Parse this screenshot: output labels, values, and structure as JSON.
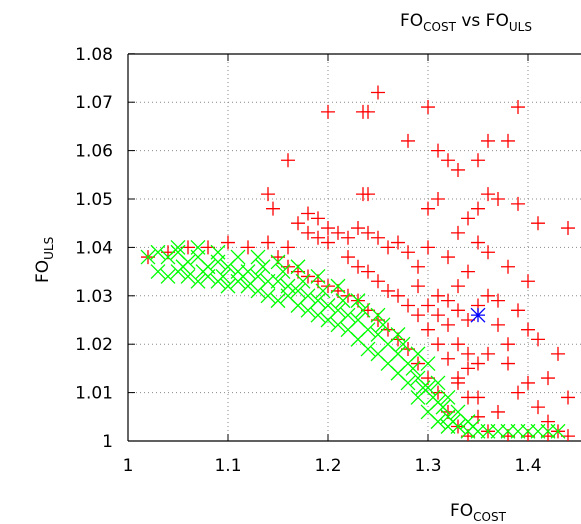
{
  "chart_data": {
    "type": "scatter",
    "title": {
      "base": "FO",
      "sub": "COST",
      "mid": " vs FO",
      "sub2": "ULS"
    },
    "xlabel": {
      "base": "FO",
      "sub": "COST"
    },
    "ylabel": {
      "base": "FO",
      "sub": "ULS"
    },
    "xlim": [
      1.0,
      1.44
    ],
    "ylim": [
      1.0,
      1.08
    ],
    "xticks": [
      1,
      1.1,
      1.2,
      1.3,
      1.4
    ],
    "xtick_labels": [
      "1",
      "1.1",
      "1.2",
      "1.3",
      "1.4"
    ],
    "yticks": [
      1,
      1.01,
      1.02,
      1.03,
      1.04,
      1.05,
      1.06,
      1.07,
      1.08
    ],
    "ytick_labels": [
      "1",
      "1.01",
      "1.02",
      "1.03",
      "1.04",
      "1.05",
      "1.06",
      "1.07",
      "1.08"
    ],
    "grid": true,
    "series": [
      {
        "marker": "plus",
        "color": "#ff0000",
        "points": [
          [
            1.25,
            1.072
          ],
          [
            1.2,
            1.068
          ],
          [
            1.235,
            1.068
          ],
          [
            1.24,
            1.068
          ],
          [
            1.3,
            1.069
          ],
          [
            1.39,
            1.069
          ],
          [
            1.16,
            1.058
          ],
          [
            1.31,
            1.06
          ],
          [
            1.32,
            1.058
          ],
          [
            1.35,
            1.058
          ],
          [
            1.33,
            1.056
          ],
          [
            1.28,
            1.062
          ],
          [
            1.38,
            1.062
          ],
          [
            1.36,
            1.062
          ],
          [
            1.14,
            1.051
          ],
          [
            1.145,
            1.048
          ],
          [
            1.24,
            1.051
          ],
          [
            1.235,
            1.051
          ],
          [
            1.3,
            1.048
          ],
          [
            1.31,
            1.05
          ],
          [
            1.36,
            1.051
          ],
          [
            1.37,
            1.05
          ],
          [
            1.39,
            1.049
          ],
          [
            1.34,
            1.046
          ],
          [
            1.35,
            1.048
          ],
          [
            1.41,
            1.045
          ],
          [
            1.44,
            1.044
          ],
          [
            1.33,
            1.043
          ],
          [
            1.35,
            1.041
          ],
          [
            1.36,
            1.039
          ],
          [
            1.32,
            1.038
          ],
          [
            1.3,
            1.04
          ],
          [
            1.38,
            1.036
          ],
          [
            1.34,
            1.035
          ],
          [
            1.4,
            1.033
          ],
          [
            1.33,
            1.032
          ],
          [
            1.36,
            1.03
          ],
          [
            1.37,
            1.029
          ],
          [
            1.31,
            1.03
          ],
          [
            1.29,
            1.032
          ],
          [
            1.39,
            1.027
          ],
          [
            1.35,
            1.028
          ],
          [
            1.4,
            1.023
          ],
          [
            1.41,
            1.021
          ],
          [
            1.37,
            1.024
          ],
          [
            1.38,
            1.02
          ],
          [
            1.43,
            1.018
          ],
          [
            1.36,
            1.018
          ],
          [
            1.38,
            1.016
          ],
          [
            1.34,
            1.015
          ],
          [
            1.4,
            1.012
          ],
          [
            1.39,
            1.01
          ],
          [
            1.41,
            1.007
          ],
          [
            1.42,
            1.004
          ],
          [
            1.43,
            1.002
          ],
          [
            1.37,
            1.006
          ],
          [
            1.35,
            1.009
          ],
          [
            1.33,
            1.012
          ],
          [
            1.42,
            1.013
          ],
          [
            1.44,
            1.009
          ],
          [
            1.02,
            1.038
          ],
          [
            1.04,
            1.039
          ],
          [
            1.06,
            1.04
          ],
          [
            1.08,
            1.04
          ],
          [
            1.1,
            1.041
          ],
          [
            1.12,
            1.04
          ],
          [
            1.14,
            1.041
          ],
          [
            1.16,
            1.04
          ],
          [
            1.18,
            1.043
          ],
          [
            1.19,
            1.046
          ],
          [
            1.2,
            1.044
          ],
          [
            1.21,
            1.043
          ],
          [
            1.22,
            1.042
          ],
          [
            1.23,
            1.044
          ],
          [
            1.24,
            1.043
          ],
          [
            1.25,
            1.042
          ],
          [
            1.26,
            1.04
          ],
          [
            1.27,
            1.041
          ],
          [
            1.17,
            1.045
          ],
          [
            1.18,
            1.047
          ],
          [
            1.19,
            1.042
          ],
          [
            1.2,
            1.041
          ],
          [
            1.28,
            1.039
          ],
          [
            1.29,
            1.036
          ],
          [
            1.22,
            1.038
          ],
          [
            1.23,
            1.036
          ],
          [
            1.24,
            1.035
          ],
          [
            1.25,
            1.033
          ],
          [
            1.26,
            1.031
          ],
          [
            1.27,
            1.03
          ],
          [
            1.28,
            1.028
          ],
          [
            1.29,
            1.026
          ],
          [
            1.3,
            1.023
          ],
          [
            1.31,
            1.02
          ],
          [
            1.32,
            1.017
          ],
          [
            1.33,
            1.013
          ],
          [
            1.34,
            1.009
          ],
          [
            1.35,
            1.005
          ],
          [
            1.36,
            1.002
          ],
          [
            1.3,
            1.028
          ],
          [
            1.31,
            1.026
          ],
          [
            1.32,
            1.024
          ],
          [
            1.32,
            1.029
          ],
          [
            1.33,
            1.027
          ],
          [
            1.34,
            1.025
          ],
          [
            1.33,
            1.02
          ],
          [
            1.34,
            1.018
          ],
          [
            1.35,
            1.016
          ],
          [
            1.15,
            1.038
          ],
          [
            1.16,
            1.036
          ],
          [
            1.17,
            1.035
          ],
          [
            1.18,
            1.034
          ],
          [
            1.19,
            1.033
          ],
          [
            1.2,
            1.032
          ],
          [
            1.21,
            1.031
          ],
          [
            1.22,
            1.03
          ],
          [
            1.23,
            1.029
          ],
          [
            1.24,
            1.027
          ],
          [
            1.25,
            1.025
          ],
          [
            1.26,
            1.023
          ],
          [
            1.27,
            1.021
          ],
          [
            1.28,
            1.019
          ],
          [
            1.29,
            1.016
          ],
          [
            1.3,
            1.013
          ],
          [
            1.31,
            1.01
          ],
          [
            1.32,
            1.006
          ],
          [
            1.33,
            1.003
          ],
          [
            1.34,
            1.001
          ],
          [
            1.38,
            1.001
          ],
          [
            1.4,
            1.001
          ],
          [
            1.42,
            1.001
          ],
          [
            1.44,
            1.001
          ]
        ]
      },
      {
        "marker": "cross",
        "color": "#00ff00",
        "points": [
          [
            1.02,
            1.038
          ],
          [
            1.03,
            1.039
          ],
          [
            1.04,
            1.038
          ],
          [
            1.05,
            1.039
          ],
          [
            1.06,
            1.037
          ],
          [
            1.07,
            1.038
          ],
          [
            1.08,
            1.036
          ],
          [
            1.09,
            1.037
          ],
          [
            1.1,
            1.036
          ],
          [
            1.11,
            1.035
          ],
          [
            1.12,
            1.035
          ],
          [
            1.13,
            1.034
          ],
          [
            1.14,
            1.033
          ],
          [
            1.15,
            1.033
          ],
          [
            1.16,
            1.032
          ],
          [
            1.17,
            1.031
          ],
          [
            1.18,
            1.03
          ],
          [
            1.19,
            1.029
          ],
          [
            1.2,
            1.028
          ],
          [
            1.21,
            1.027
          ],
          [
            1.22,
            1.026
          ],
          [
            1.23,
            1.025
          ],
          [
            1.24,
            1.023
          ],
          [
            1.25,
            1.022
          ],
          [
            1.26,
            1.02
          ],
          [
            1.27,
            1.018
          ],
          [
            1.28,
            1.016
          ],
          [
            1.29,
            1.013
          ],
          [
            1.3,
            1.011
          ],
          [
            1.31,
            1.008
          ],
          [
            1.32,
            1.005
          ],
          [
            1.33,
            1.003
          ],
          [
            1.34,
            1.002
          ],
          [
            1.35,
            1.002
          ],
          [
            1.36,
            1.002
          ],
          [
            1.37,
            1.002
          ],
          [
            1.38,
            1.002
          ],
          [
            1.39,
            1.002
          ],
          [
            1.4,
            1.002
          ],
          [
            1.41,
            1.002
          ],
          [
            1.42,
            1.002
          ],
          [
            1.43,
            1.002
          ],
          [
            1.03,
            1.035
          ],
          [
            1.04,
            1.034
          ],
          [
            1.05,
            1.035
          ],
          [
            1.06,
            1.034
          ],
          [
            1.07,
            1.033
          ],
          [
            1.08,
            1.034
          ],
          [
            1.09,
            1.033
          ],
          [
            1.1,
            1.032
          ],
          [
            1.11,
            1.033
          ],
          [
            1.12,
            1.032
          ],
          [
            1.13,
            1.031
          ],
          [
            1.14,
            1.03
          ],
          [
            1.15,
            1.029
          ],
          [
            1.16,
            1.03
          ],
          [
            1.17,
            1.028
          ],
          [
            1.18,
            1.027
          ],
          [
            1.19,
            1.026
          ],
          [
            1.2,
            1.025
          ],
          [
            1.21,
            1.024
          ],
          [
            1.22,
            1.023
          ],
          [
            1.23,
            1.021
          ],
          [
            1.24,
            1.019
          ],
          [
            1.25,
            1.018
          ],
          [
            1.26,
            1.016
          ],
          [
            1.27,
            1.014
          ],
          [
            1.28,
            1.012
          ],
          [
            1.29,
            1.009
          ],
          [
            1.3,
            1.006
          ],
          [
            1.31,
            1.004
          ],
          [
            1.32,
            1.003
          ],
          [
            1.05,
            1.04
          ],
          [
            1.07,
            1.04
          ],
          [
            1.09,
            1.039
          ],
          [
            1.11,
            1.038
          ],
          [
            1.13,
            1.038
          ],
          [
            1.15,
            1.037
          ],
          [
            1.17,
            1.036
          ],
          [
            1.19,
            1.034
          ],
          [
            1.21,
            1.032
          ],
          [
            1.23,
            1.029
          ],
          [
            1.25,
            1.026
          ],
          [
            1.27,
            1.022
          ],
          [
            1.29,
            1.018
          ],
          [
            1.3,
            1.016
          ],
          [
            1.31,
            1.012
          ],
          [
            1.32,
            1.009
          ],
          [
            1.33,
            1.006
          ],
          [
            1.34,
            1.004
          ],
          [
            1.055,
            1.036
          ],
          [
            1.075,
            1.035
          ],
          [
            1.095,
            1.034
          ],
          [
            1.115,
            1.034
          ],
          [
            1.135,
            1.036
          ],
          [
            1.155,
            1.035
          ],
          [
            1.175,
            1.033
          ],
          [
            1.195,
            1.031
          ],
          [
            1.215,
            1.029
          ],
          [
            1.235,
            1.027
          ],
          [
            1.255,
            1.024
          ],
          [
            1.275,
            1.02
          ],
          [
            1.285,
            1.015
          ],
          [
            1.295,
            1.011
          ],
          [
            1.305,
            1.009
          ],
          [
            1.315,
            1.007
          ],
          [
            1.325,
            1.004
          ],
          [
            1.345,
            1.003
          ]
        ]
      },
      {
        "marker": "star",
        "color": "#0000ff",
        "points": [
          [
            1.35,
            1.026
          ]
        ]
      }
    ]
  }
}
